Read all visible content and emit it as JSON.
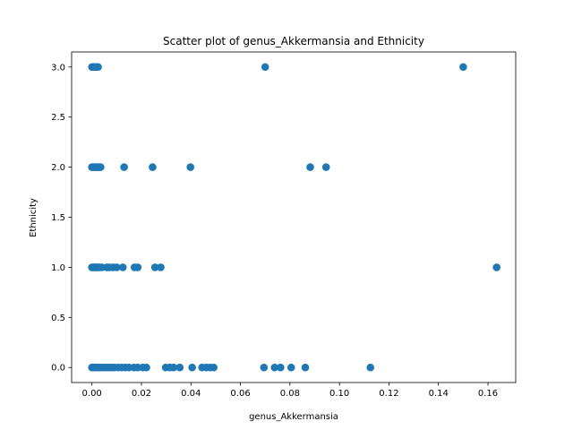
{
  "chart_data": {
    "type": "scatter",
    "title": "Scatter plot of genus_Akkermansia and Ethnicity",
    "xlabel": "genus_Akkermansia",
    "ylabel": "Ethnicity",
    "xlim": [
      -0.0082,
      0.1712
    ],
    "ylim": [
      -0.15,
      3.15
    ],
    "xticks": [
      0.0,
      0.02,
      0.04,
      0.06,
      0.08,
      0.1,
      0.12,
      0.14,
      0.16
    ],
    "xtick_labels": [
      "0.00",
      "0.02",
      "0.04",
      "0.06",
      "0.08",
      "0.10",
      "0.12",
      "0.14",
      "0.16"
    ],
    "yticks": [
      0.0,
      0.5,
      1.0,
      1.5,
      2.0,
      2.5,
      3.0
    ],
    "ytick_labels": [
      "0.0",
      "0.5",
      "1.0",
      "1.5",
      "2.0",
      "2.5",
      "3.0"
    ],
    "grid": false,
    "marker_color": "#1f77b4",
    "points": [
      {
        "x": 0.0,
        "y": 3
      },
      {
        "x": 0.0005,
        "y": 3
      },
      {
        "x": 0.001,
        "y": 3
      },
      {
        "x": 0.0015,
        "y": 3
      },
      {
        "x": 0.002,
        "y": 3
      },
      {
        "x": 0.0025,
        "y": 3
      },
      {
        "x": 0.07,
        "y": 3
      },
      {
        "x": 0.15,
        "y": 3
      },
      {
        "x": 0.0,
        "y": 2
      },
      {
        "x": 0.0005,
        "y": 2
      },
      {
        "x": 0.001,
        "y": 2
      },
      {
        "x": 0.0015,
        "y": 2
      },
      {
        "x": 0.002,
        "y": 2
      },
      {
        "x": 0.0025,
        "y": 2
      },
      {
        "x": 0.003,
        "y": 2
      },
      {
        "x": 0.0035,
        "y": 2
      },
      {
        "x": 0.013,
        "y": 2
      },
      {
        "x": 0.0245,
        "y": 2
      },
      {
        "x": 0.0398,
        "y": 2
      },
      {
        "x": 0.0882,
        "y": 2
      },
      {
        "x": 0.0946,
        "y": 2
      },
      {
        "x": 0.0,
        "y": 1
      },
      {
        "x": 0.0005,
        "y": 1
      },
      {
        "x": 0.001,
        "y": 1
      },
      {
        "x": 0.0015,
        "y": 1
      },
      {
        "x": 0.002,
        "y": 1
      },
      {
        "x": 0.0025,
        "y": 1
      },
      {
        "x": 0.003,
        "y": 1
      },
      {
        "x": 0.004,
        "y": 1
      },
      {
        "x": 0.006,
        "y": 1
      },
      {
        "x": 0.007,
        "y": 1
      },
      {
        "x": 0.0085,
        "y": 1
      },
      {
        "x": 0.01,
        "y": 1
      },
      {
        "x": 0.0125,
        "y": 1
      },
      {
        "x": 0.0172,
        "y": 1
      },
      {
        "x": 0.0185,
        "y": 1
      },
      {
        "x": 0.0255,
        "y": 1
      },
      {
        "x": 0.0278,
        "y": 1
      },
      {
        "x": 0.1635,
        "y": 1
      },
      {
        "x": 0.0,
        "y": 0
      },
      {
        "x": 0.0005,
        "y": 0
      },
      {
        "x": 0.001,
        "y": 0
      },
      {
        "x": 0.0015,
        "y": 0
      },
      {
        "x": 0.002,
        "y": 0
      },
      {
        "x": 0.003,
        "y": 0
      },
      {
        "x": 0.004,
        "y": 0
      },
      {
        "x": 0.005,
        "y": 0
      },
      {
        "x": 0.006,
        "y": 0
      },
      {
        "x": 0.007,
        "y": 0
      },
      {
        "x": 0.008,
        "y": 0
      },
      {
        "x": 0.009,
        "y": 0
      },
      {
        "x": 0.0105,
        "y": 0
      },
      {
        "x": 0.012,
        "y": 0
      },
      {
        "x": 0.0135,
        "y": 0
      },
      {
        "x": 0.015,
        "y": 0
      },
      {
        "x": 0.017,
        "y": 0
      },
      {
        "x": 0.0185,
        "y": 0
      },
      {
        "x": 0.0205,
        "y": 0
      },
      {
        "x": 0.022,
        "y": 0
      },
      {
        "x": 0.0298,
        "y": 0
      },
      {
        "x": 0.0315,
        "y": 0
      },
      {
        "x": 0.033,
        "y": 0
      },
      {
        "x": 0.0355,
        "y": 0
      },
      {
        "x": 0.0405,
        "y": 0
      },
      {
        "x": 0.0445,
        "y": 0
      },
      {
        "x": 0.0462,
        "y": 0
      },
      {
        "x": 0.0478,
        "y": 0
      },
      {
        "x": 0.0492,
        "y": 0
      },
      {
        "x": 0.0695,
        "y": 0
      },
      {
        "x": 0.0738,
        "y": 0
      },
      {
        "x": 0.0762,
        "y": 0
      },
      {
        "x": 0.0805,
        "y": 0
      },
      {
        "x": 0.0862,
        "y": 0
      },
      {
        "x": 0.1125,
        "y": 0
      }
    ]
  }
}
